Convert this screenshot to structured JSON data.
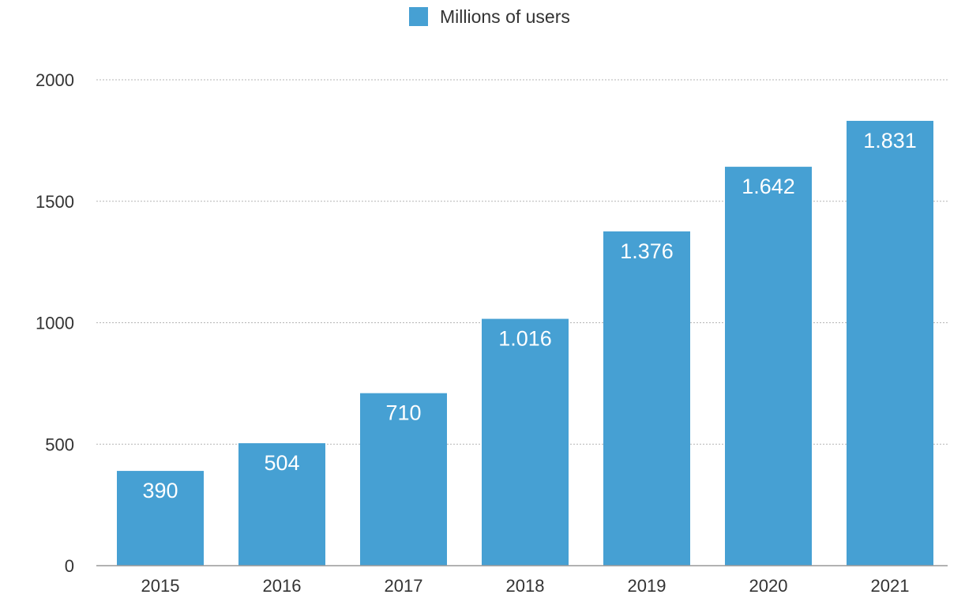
{
  "chart_data": {
    "type": "bar",
    "categories": [
      "2015",
      "2016",
      "2017",
      "2018",
      "2019",
      "2020",
      "2021"
    ],
    "series": [
      {
        "name": "Millions of users",
        "values": [
          390,
          504,
          710,
          1016,
          1376,
          1642,
          1831
        ],
        "data_labels": [
          "390",
          "504",
          "710",
          "1.016",
          "1.376",
          "1.642",
          "1.831"
        ],
        "color": "#46A0D3"
      }
    ],
    "title": "",
    "xlabel": "",
    "ylabel": "",
    "ylim": [
      0,
      2000
    ],
    "yticks": [
      0,
      500,
      1000,
      1500,
      2000
    ],
    "grid": true,
    "legend_position": "top-center"
  }
}
